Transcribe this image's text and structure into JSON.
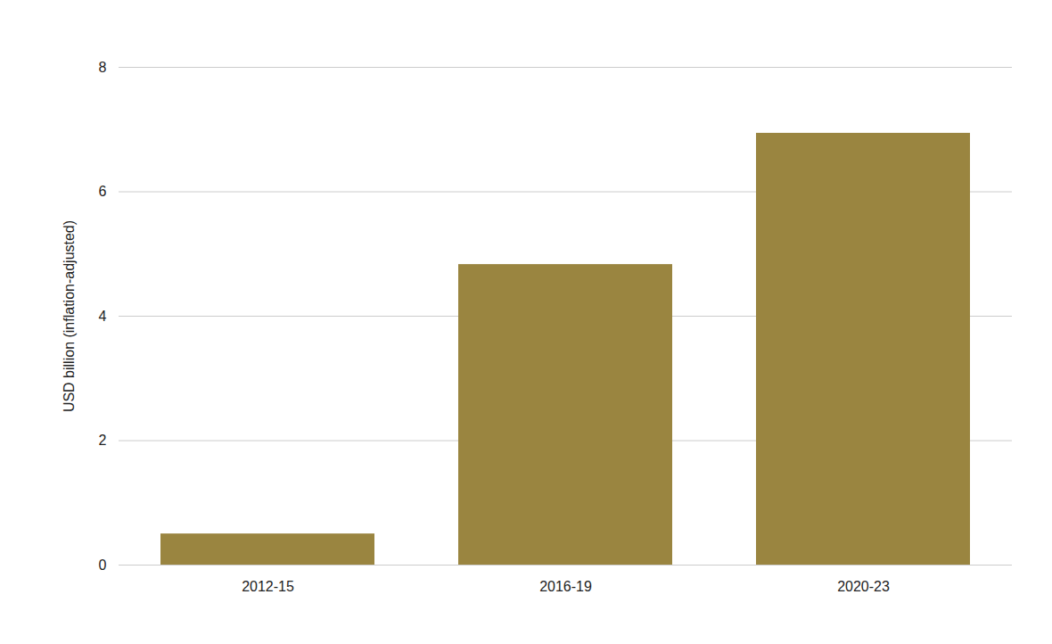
{
  "chart_data": {
    "type": "bar",
    "y_label": "USD billion (inflation-adjusted)",
    "categories": [
      "2012-15",
      "2016-19",
      "2020-23"
    ],
    "values": [
      0.5,
      4.83,
      6.94
    ],
    "color": "#9a8540",
    "ylim": [
      0,
      8
    ],
    "yticks": [
      0,
      2,
      4,
      6,
      8
    ],
    "grid": true
  }
}
